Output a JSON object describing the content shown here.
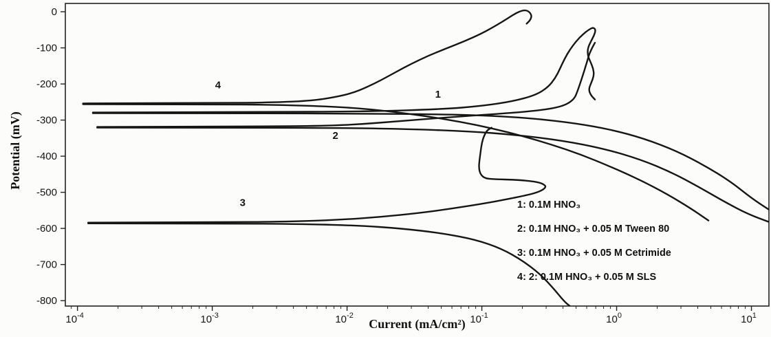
{
  "figure": {
    "background": "#fcfcfa",
    "curve_color": "#161616",
    "axis_color": "#222222"
  },
  "chart_data": {
    "type": "line",
    "title": "",
    "xlabel": "Current (mA/cm²)",
    "ylabel": "Potential (mV)",
    "x_scale": "log",
    "x_unit": "mA/cm²",
    "y_unit": "mV",
    "xlim_log": [
      -4.09,
      1.13
    ],
    "ylim": [
      -815,
      23
    ],
    "grid": false,
    "legend_position": "inside-lower-right",
    "x_ticks": [
      {
        "log": -4,
        "base": "10",
        "exp": "-4"
      },
      {
        "log": -3,
        "base": "10",
        "exp": "-3"
      },
      {
        "log": -2,
        "base": "10",
        "exp": "-2"
      },
      {
        "log": -1,
        "base": "10",
        "exp": "-1"
      },
      {
        "log": 0,
        "base": "10",
        "exp": "0"
      },
      {
        "log": 1,
        "base": "10",
        "exp": "1"
      }
    ],
    "y_ticks": [
      {
        "value": 0,
        "label": "0"
      },
      {
        "value": -100,
        "label": "-100"
      },
      {
        "value": -200,
        "label": "-200"
      },
      {
        "value": -300,
        "label": "-300"
      },
      {
        "value": -400,
        "label": "-400"
      },
      {
        "value": -500,
        "label": "-500"
      },
      {
        "value": -600,
        "label": "-600"
      },
      {
        "value": -700,
        "label": "-700"
      },
      {
        "value": -800,
        "label": "-800"
      }
    ],
    "legend_lines": [
      "1: 0.1M HNO₃",
      "2: 0.1M HNO₃ + 0.05 M Tween 80",
      "3: 0.1M HNO₃ + 0.05 M Cetrimide",
      "4: 2: 0.1M HNO₃ + 0.05 M SLS"
    ],
    "series": [
      {
        "id": "1",
        "name": "0.1M HNO₃",
        "ecorr_mV": -280,
        "curve_label": {
          "text": "1",
          "at": [
            0.045,
            -238
          ]
        },
        "branches": {
          "cathodic": [
            [
              0.00013,
              -281
            ],
            [
              0.002,
              -281
            ],
            [
              0.012,
              -282
            ],
            [
              0.05,
              -284
            ],
            [
              0.12,
              -288
            ],
            [
              0.25,
              -296
            ],
            [
              0.5,
              -309
            ],
            [
              0.9,
              -326
            ],
            [
              1.6,
              -351
            ],
            [
              2.8,
              -386
            ],
            [
              4.5,
              -426
            ],
            [
              7,
              -470
            ],
            [
              10,
              -516
            ],
            [
              14,
              -552
            ]
          ],
          "anodic": [
            [
              0.00013,
              -279
            ],
            [
              0.002,
              -278
            ],
            [
              0.015,
              -276
            ],
            [
              0.05,
              -270
            ],
            [
              0.1,
              -261
            ],
            [
              0.17,
              -248
            ],
            [
              0.25,
              -231
            ],
            [
              0.31,
              -209
            ],
            [
              0.35,
              -184
            ],
            [
              0.38,
              -158
            ],
            [
              0.41,
              -131
            ],
            [
              0.45,
              -105
            ],
            [
              0.5,
              -82
            ],
            [
              0.56,
              -63
            ],
            [
              0.62,
              -50
            ],
            [
              0.67,
              -43
            ],
            [
              0.7,
              -50
            ],
            [
              0.68,
              -66
            ],
            [
              0.64,
              -84
            ],
            [
              0.61,
              -102
            ],
            [
              0.61,
              -121
            ],
            [
              0.64,
              -139
            ],
            [
              0.67,
              -157
            ],
            [
              0.68,
              -176
            ],
            [
              0.65,
              -196
            ],
            [
              0.62,
              -214
            ],
            [
              0.64,
              -230
            ],
            [
              0.69,
              -243
            ]
          ]
        }
      },
      {
        "id": "2",
        "name": "0.1M HNO₃ + 0.05 M Tween 80",
        "ecorr_mV": -320,
        "curve_label": {
          "text": "2",
          "at": [
            0.0078,
            -352
          ]
        },
        "branches": {
          "cathodic": [
            [
              0.00014,
              -321
            ],
            [
              0.002,
              -321
            ],
            [
              0.01,
              -322
            ],
            [
              0.03,
              -325
            ],
            [
              0.08,
              -331
            ],
            [
              0.18,
              -341
            ],
            [
              0.4,
              -357
            ],
            [
              0.8,
              -379
            ],
            [
              1.5,
              -409
            ],
            [
              2.6,
              -446
            ],
            [
              4.2,
              -488
            ],
            [
              6.5,
              -529
            ],
            [
              9.5,
              -561
            ],
            [
              13.5,
              -582
            ]
          ],
          "anodic": [
            [
              0.00014,
              -319
            ],
            [
              0.002,
              -318
            ],
            [
              0.007,
              -316
            ],
            [
              0.013,
              -311
            ],
            [
              0.023,
              -304
            ],
            [
              0.042,
              -296
            ],
            [
              0.075,
              -289
            ],
            [
              0.13,
              -283
            ],
            [
              0.21,
              -277
            ],
            [
              0.31,
              -270
            ],
            [
              0.39,
              -262
            ],
            [
              0.45,
              -251
            ],
            [
              0.49,
              -238
            ],
            [
              0.51,
              -222
            ],
            [
              0.53,
              -204
            ],
            [
              0.55,
              -186
            ],
            [
              0.57,
              -168
            ],
            [
              0.59,
              -150
            ],
            [
              0.61,
              -132
            ],
            [
              0.63,
              -115
            ],
            [
              0.66,
              -99
            ],
            [
              0.69,
              -86
            ]
          ]
        }
      },
      {
        "id": "3",
        "name": "0.1M HNO₃ + 0.05 M Cetrimide",
        "ecorr_mV": -585,
        "curve_label": {
          "text": "3",
          "at": [
            0.0016,
            -538
          ]
        },
        "branches": {
          "cathodic": [
            [
              0.00012,
              -586
            ],
            [
              0.001,
              -586
            ],
            [
              0.005,
              -588
            ],
            [
              0.012,
              -592
            ],
            [
              0.025,
              -600
            ],
            [
              0.05,
              -613
            ],
            [
              0.09,
              -631
            ],
            [
              0.14,
              -656
            ],
            [
              0.2,
              -689
            ],
            [
              0.27,
              -726
            ],
            [
              0.34,
              -766
            ],
            [
              0.41,
              -803
            ],
            [
              0.45,
              -815
            ]
          ],
          "anodic": [
            [
              0.00012,
              -584
            ],
            [
              0.001,
              -583
            ],
            [
              0.004,
              -581
            ],
            [
              0.009,
              -576
            ],
            [
              0.018,
              -568
            ],
            [
              0.035,
              -557
            ],
            [
              0.06,
              -545
            ],
            [
              0.1,
              -532
            ],
            [
              0.15,
              -520
            ],
            [
              0.21,
              -509
            ],
            [
              0.26,
              -500
            ],
            [
              0.29,
              -491
            ],
            [
              0.3,
              -482
            ],
            [
              0.27,
              -473
            ],
            [
              0.22,
              -468
            ],
            [
              0.17,
              -465
            ],
            [
              0.13,
              -464
            ],
            [
              0.106,
              -462
            ],
            [
              0.098,
              -451
            ],
            [
              0.095,
              -434
            ],
            [
              0.096,
              -411
            ],
            [
              0.098,
              -387
            ],
            [
              0.1,
              -363
            ],
            [
              0.104,
              -343
            ],
            [
              0.109,
              -329
            ],
            [
              0.118,
              -321
            ]
          ]
        }
      },
      {
        "id": "4",
        "name": "0.1M HNO₃ + 0.05 M SLS",
        "ecorr_mV": -255,
        "curve_label": {
          "text": "4",
          "at": [
            0.00105,
            -212
          ]
        },
        "branches": {
          "cathodic": [
            [
              0.00011,
              -256
            ],
            [
              0.001,
              -256
            ],
            [
              0.003,
              -258
            ],
            [
              0.007,
              -262
            ],
            [
              0.013,
              -268
            ],
            [
              0.022,
              -277
            ],
            [
              0.04,
              -290
            ],
            [
              0.07,
              -305
            ],
            [
              0.12,
              -323
            ],
            [
              0.2,
              -344
            ],
            [
              0.33,
              -368
            ],
            [
              0.55,
              -396
            ],
            [
              0.9,
              -429
            ],
            [
              1.5,
              -466
            ],
            [
              2.4,
              -506
            ],
            [
              3.6,
              -546
            ],
            [
              4.8,
              -578
            ]
          ],
          "anodic": [
            [
              0.00011,
              -254
            ],
            [
              0.001,
              -253
            ],
            [
              0.003,
              -251
            ],
            [
              0.0055,
              -246
            ],
            [
              0.008,
              -237
            ],
            [
              0.011,
              -225
            ],
            [
              0.014,
              -209
            ],
            [
              0.018,
              -189
            ],
            [
              0.023,
              -167
            ],
            [
              0.03,
              -144
            ],
            [
              0.04,
              -122
            ],
            [
              0.055,
              -101
            ],
            [
              0.075,
              -81
            ],
            [
              0.1,
              -60
            ],
            [
              0.125,
              -40
            ],
            [
              0.15,
              -22
            ],
            [
              0.17,
              -9
            ],
            [
              0.19,
              1
            ],
            [
              0.21,
              5
            ],
            [
              0.225,
              0
            ],
            [
              0.235,
              -11
            ],
            [
              0.228,
              -24
            ],
            [
              0.215,
              -33
            ]
          ]
        }
      }
    ]
  }
}
